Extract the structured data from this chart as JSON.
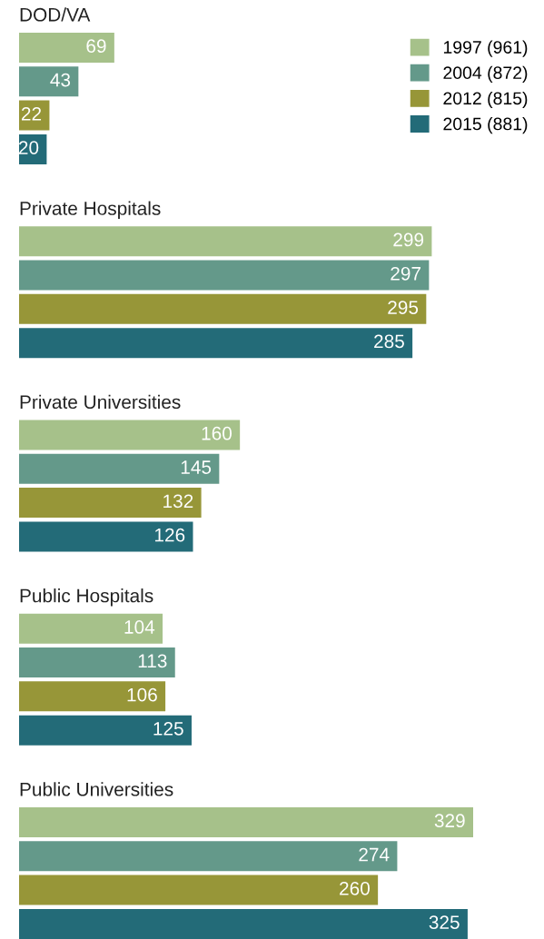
{
  "chart_data": {
    "type": "bar",
    "orientation": "horizontal",
    "categories": [
      "DOD/VA",
      "Private Hospitals",
      "Private Universities",
      "Public Hospitals",
      "Public Universities"
    ],
    "series": [
      {
        "name": "1997 (961)",
        "color": "#a6c18a",
        "values": [
          69,
          299,
          160,
          104,
          329
        ]
      },
      {
        "name": "2004 (872)",
        "color": "#64998a",
        "values": [
          43,
          297,
          145,
          113,
          274
        ]
      },
      {
        "name": "2012 (815)",
        "color": "#979638",
        "values": [
          22,
          295,
          132,
          106,
          260
        ]
      },
      {
        "name": "2015 (881)",
        "color": "#236b78",
        "values": [
          20,
          285,
          126,
          125,
          325
        ]
      }
    ],
    "data_labels": true,
    "legend": "top right"
  }
}
